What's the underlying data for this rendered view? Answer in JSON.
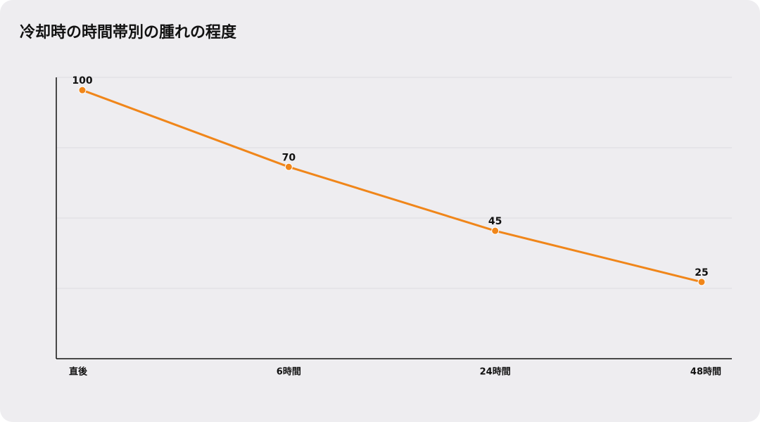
{
  "chart_data": {
    "type": "line",
    "title": "冷却時の時間帯別の腫れの程度",
    "categories": [
      "直後",
      "6時間",
      "24時間",
      "48時間"
    ],
    "values": [
      100,
      70,
      45,
      25
    ],
    "color": "#f0861a",
    "ylim": [
      -5,
      105
    ],
    "yticks": [
      22.5,
      50,
      77.5,
      105
    ],
    "grid": true
  }
}
